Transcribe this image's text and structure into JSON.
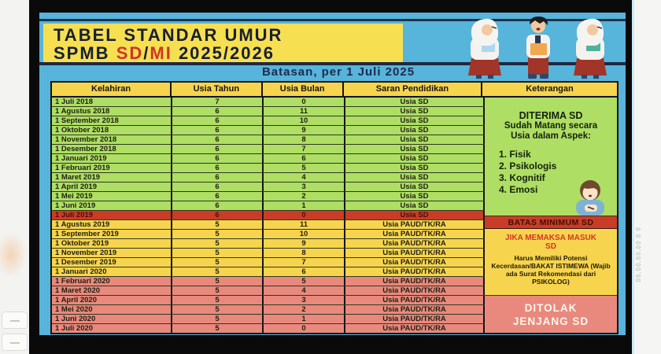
{
  "poster": {
    "title_line1": "TABEL STANDAR UMUR",
    "title_line2_parts": [
      {
        "text": "SPMB "
      },
      {
        "text": "SD"
      },
      {
        "text": "/"
      },
      {
        "text": "MI"
      },
      {
        "text": " 2025/2026"
      }
    ],
    "subtitle": "Batasan, per 1 Juli 2025"
  },
  "colors": {
    "poster_blue": "#57b4da",
    "title_yellow": "#f7df52",
    "zone_green": "#aede63",
    "zone_yellow": "#f6d44d",
    "zone_red": "#c93d28",
    "zone_pink": "#e9897d",
    "title_navy": "#171f33",
    "accent_red": "#cf3627"
  },
  "table": {
    "columns": [
      "Kelahiran",
      "Usia Tahun",
      "Usia Bulan",
      "Saran Pendidikan",
      "Keterangan"
    ],
    "rows": [
      {
        "k": "1 Juli 2018",
        "t": "7",
        "b": "0",
        "s": "Usia SD",
        "zone": "green"
      },
      {
        "k": "1 Agustus 2018",
        "t": "6",
        "b": "11",
        "s": "Usia SD",
        "zone": "green"
      },
      {
        "k": "1 September 2018",
        "t": "6",
        "b": "10",
        "s": "Usia SD",
        "zone": "green"
      },
      {
        "k": "1 Oktober 2018",
        "t": "6",
        "b": "9",
        "s": "Usia SD",
        "zone": "green"
      },
      {
        "k": "1 November 2018",
        "t": "6",
        "b": "8",
        "s": "Usia SD",
        "zone": "green"
      },
      {
        "k": "1 Desember 2018",
        "t": "6",
        "b": "7",
        "s": "Usia SD",
        "zone": "green"
      },
      {
        "k": "1 Januari 2019",
        "t": "6",
        "b": "6",
        "s": "Usia SD",
        "zone": "green"
      },
      {
        "k": "1 Februari 2019",
        "t": "6",
        "b": "5",
        "s": "Usia SD",
        "zone": "green"
      },
      {
        "k": "1 Maret 2019",
        "t": "6",
        "b": "4",
        "s": "Usia SD",
        "zone": "green"
      },
      {
        "k": "1 April 2019",
        "t": "6",
        "b": "3",
        "s": "Usia SD",
        "zone": "green"
      },
      {
        "k": "1 Mei 2019",
        "t": "6",
        "b": "2",
        "s": "Usia SD",
        "zone": "green"
      },
      {
        "k": "1 Juni 2019",
        "t": "6",
        "b": "1",
        "s": "Usia SD",
        "zone": "green"
      },
      {
        "k": "1 Juli 2019",
        "t": "6",
        "b": "0",
        "s": "Usia SD",
        "zone": "red"
      },
      {
        "k": "1 Agustus 2019",
        "t": "5",
        "b": "11",
        "s": "Usia PAUD/TK/RA",
        "zone": "yellow"
      },
      {
        "k": "1 September 2019",
        "t": "5",
        "b": "10",
        "s": "Usia PAUD/TK/RA",
        "zone": "yellow"
      },
      {
        "k": "1 Oktober 2019",
        "t": "5",
        "b": "9",
        "s": "Usia PAUD/TK/RA",
        "zone": "yellow"
      },
      {
        "k": "1 November 2019",
        "t": "5",
        "b": "8",
        "s": "Usia PAUD/TK/RA",
        "zone": "yellow"
      },
      {
        "k": "1 Desember 2019",
        "t": "5",
        "b": "7",
        "s": "Usia PAUD/TK/RA",
        "zone": "yellow"
      },
      {
        "k": "1 Januari 2020",
        "t": "5",
        "b": "6",
        "s": "Usia PAUD/TK/RA",
        "zone": "yellow"
      },
      {
        "k": "1 Februari 2020",
        "t": "5",
        "b": "5",
        "s": "Usia PAUD/TK/RA",
        "zone": "pink"
      },
      {
        "k": "1 Maret 2020",
        "t": "5",
        "b": "4",
        "s": "Usia PAUD/TK/RA",
        "zone": "pink"
      },
      {
        "k": "1 April 2020",
        "t": "5",
        "b": "3",
        "s": "Usia PAUD/TK/RA",
        "zone": "pink"
      },
      {
        "k": "1 Mei 2020",
        "t": "5",
        "b": "2",
        "s": "Usia PAUD/TK/RA",
        "zone": "pink"
      },
      {
        "k": "1 Juni 2020",
        "t": "5",
        "b": "1",
        "s": "Usia PAUD/TK/RA",
        "zone": "pink"
      },
      {
        "k": "1 Juli 2020",
        "t": "5",
        "b": "0",
        "s": "Usia PAUD/TK/RA",
        "zone": "pink"
      }
    ],
    "keterangan_sections": [
      {
        "zone": "green",
        "rows": 12,
        "heading": "DITERIMA SD",
        "subheading": "Sudah Matang secara Usia dalam Aspek:",
        "list": [
          "1. Fisik",
          "2. Psikologis",
          "3. Kognitif",
          "4. Emosi"
        ],
        "icon": "boy-writing-icon"
      },
      {
        "zone": "red",
        "rows": 1,
        "label": "BATAS MINIMUM SD"
      },
      {
        "zone": "yellow",
        "rows": 6,
        "title": "JIKA MEMAKSA MASUK SD",
        "body": "Harus Memiliki Potensi Kecerdasan/BAKAT ISTIMEWA (Wajib ada Surat Rekomendasi dari PSIKOLOG)"
      },
      {
        "zone": "pink",
        "rows": 6,
        "label": "DITOLAK JENJANG SD"
      }
    ]
  },
  "margins": {
    "right_faint_text": "00.00.00.00 0 0"
  }
}
